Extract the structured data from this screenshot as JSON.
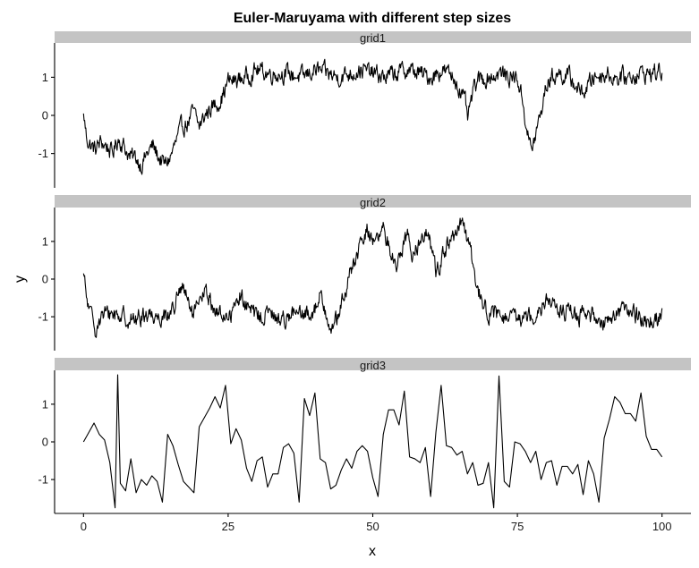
{
  "chart_data": {
    "type": "line",
    "title": "Euler-Maruyama with different step sizes",
    "xlabel": "x",
    "ylabel": "y",
    "xlim": [
      -5,
      105
    ],
    "ylim": [
      -1.9,
      1.9
    ],
    "x_ticks": [
      0,
      25,
      50,
      75,
      100
    ],
    "y_ticks": [
      -1,
      0,
      1
    ],
    "grid": false,
    "facets": [
      {
        "label": "grid1",
        "num_points": 1001,
        "anchors": [
          [
            0,
            0.05
          ],
          [
            0.5,
            -0.55
          ],
          [
            1,
            -0.75
          ],
          [
            2,
            -0.9
          ],
          [
            3,
            -0.7
          ],
          [
            4,
            -0.8
          ],
          [
            5,
            -1.0
          ],
          [
            6,
            -0.6
          ],
          [
            7,
            -0.8
          ],
          [
            8,
            -1.1
          ],
          [
            9,
            -1.1
          ],
          [
            10,
            -1.3
          ],
          [
            11,
            -1.0
          ],
          [
            12,
            -0.8
          ],
          [
            13,
            -1.1
          ],
          [
            14,
            -1.3
          ],
          [
            15,
            -1.1
          ],
          [
            16,
            -0.7
          ],
          [
            17,
            -0.3
          ],
          [
            18,
            -0.2
          ],
          [
            19,
            0.1
          ],
          [
            20,
            -0.3
          ],
          [
            21,
            0.0
          ],
          [
            22,
            0.2
          ],
          [
            23,
            0.3
          ],
          [
            24,
            0.5
          ],
          [
            25,
            0.9
          ],
          [
            26,
            0.9
          ],
          [
            28,
            1.0
          ],
          [
            30,
            1.2
          ],
          [
            32,
            1.1
          ],
          [
            35,
            1.1
          ],
          [
            38,
            1.0
          ],
          [
            40,
            1.2
          ],
          [
            42,
            1.1
          ],
          [
            44,
            1.0
          ],
          [
            46,
            1.1
          ],
          [
            48,
            1.2
          ],
          [
            50,
            1.1
          ],
          [
            52,
            1.0
          ],
          [
            54,
            1.1
          ],
          [
            56,
            1.2
          ],
          [
            58,
            1.1
          ],
          [
            60,
            1.0
          ],
          [
            62,
            1.2
          ],
          [
            63,
            1.1
          ],
          [
            64,
            1.0
          ],
          [
            65,
            0.7
          ],
          [
            66,
            0.3
          ],
          [
            66.5,
            -0.1
          ],
          [
            67,
            0.4
          ],
          [
            68,
            0.9
          ],
          [
            70,
            1.0
          ],
          [
            72,
            1.1
          ],
          [
            74,
            1.0
          ],
          [
            75,
            1.0
          ],
          [
            76,
            0.3
          ],
          [
            77,
            -0.7
          ],
          [
            77.5,
            -0.9
          ],
          [
            78,
            -0.6
          ],
          [
            79,
            0.0
          ],
          [
            80,
            0.8
          ],
          [
            81,
            1.0
          ],
          [
            82,
            1.1
          ],
          [
            84,
            1.0
          ],
          [
            86,
            0.6
          ],
          [
            87,
            0.7
          ],
          [
            88,
            1.0
          ],
          [
            90,
            1.1
          ],
          [
            92,
            1.0
          ],
          [
            94,
            1.0
          ],
          [
            96,
            1.1
          ],
          [
            98,
            1.1
          ],
          [
            100,
            1.15
          ]
        ]
      },
      {
        "label": "grid2",
        "num_points": 1001,
        "anchors": [
          [
            0,
            0.15
          ],
          [
            0.5,
            -0.5
          ],
          [
            1,
            -0.85
          ],
          [
            2,
            -1.3
          ],
          [
            3,
            -1.0
          ],
          [
            5,
            -0.9
          ],
          [
            7,
            -1.0
          ],
          [
            9,
            -1.1
          ],
          [
            11,
            -0.9
          ],
          [
            13,
            -1.0
          ],
          [
            15,
            -0.9
          ],
          [
            16,
            -0.6
          ],
          [
            17,
            -0.2
          ],
          [
            18,
            -0.6
          ],
          [
            19,
            -1.0
          ],
          [
            20,
            -0.7
          ],
          [
            21,
            -0.3
          ],
          [
            22,
            -0.6
          ],
          [
            23,
            -0.9
          ],
          [
            25,
            -1.0
          ],
          [
            26,
            -0.8
          ],
          [
            27,
            -0.4
          ],
          [
            28,
            -0.7
          ],
          [
            30,
            -1.0
          ],
          [
            32,
            -0.9
          ],
          [
            34,
            -1.1
          ],
          [
            36,
            -0.9
          ],
          [
            38,
            -1.0
          ],
          [
            40,
            -0.8
          ],
          [
            41,
            -0.4
          ],
          [
            42,
            -0.9
          ],
          [
            43,
            -1.3
          ],
          [
            44,
            -1.0
          ],
          [
            45,
            -0.5
          ],
          [
            46,
            0.1
          ],
          [
            47,
            0.5
          ],
          [
            48,
            0.9
          ],
          [
            49,
            1.3
          ],
          [
            50,
            1.1
          ],
          [
            51,
            1.0
          ],
          [
            52,
            1.3
          ],
          [
            53,
            0.8
          ],
          [
            54,
            0.3
          ],
          [
            55,
            0.8
          ],
          [
            56,
            1.2
          ],
          [
            57,
            0.6
          ],
          [
            58,
            1.0
          ],
          [
            59,
            1.3
          ],
          [
            60,
            0.9
          ],
          [
            61,
            0.2
          ],
          [
            62,
            0.6
          ],
          [
            63,
            0.9
          ],
          [
            64,
            1.1
          ],
          [
            65,
            1.4
          ],
          [
            66,
            1.3
          ],
          [
            67,
            0.6
          ],
          [
            68,
            -0.2
          ],
          [
            69,
            -0.6
          ],
          [
            70,
            -0.9
          ],
          [
            72,
            -1.0
          ],
          [
            74,
            -1.1
          ],
          [
            76,
            -1.0
          ],
          [
            78,
            -0.9
          ],
          [
            80,
            -0.5
          ],
          [
            82,
            -0.8
          ],
          [
            84,
            -0.9
          ],
          [
            86,
            -1.0
          ],
          [
            88,
            -1.0
          ],
          [
            90,
            -1.1
          ],
          [
            92,
            -0.9
          ],
          [
            94,
            -0.8
          ],
          [
            96,
            -1.0
          ],
          [
            98,
            -1.1
          ],
          [
            100,
            -1.0
          ]
        ]
      },
      {
        "label": "grid3",
        "points": [
          [
            0,
            0.0
          ],
          [
            1,
            0.25
          ],
          [
            2,
            0.5
          ],
          [
            3,
            0.2
          ],
          [
            4,
            0.05
          ],
          [
            5,
            -0.55
          ],
          [
            6,
            -1.75
          ],
          [
            6.5,
            1.78
          ],
          [
            7,
            -1.1
          ],
          [
            8,
            -1.3
          ],
          [
            9,
            -0.45
          ],
          [
            10,
            -1.35
          ],
          [
            11,
            -1.0
          ],
          [
            12,
            -1.15
          ],
          [
            13,
            -0.9
          ],
          [
            14,
            -1.05
          ],
          [
            15,
            -1.6
          ],
          [
            16,
            0.2
          ],
          [
            17,
            -0.1
          ],
          [
            18,
            -0.6
          ],
          [
            19,
            -1.05
          ],
          [
            20,
            -1.2
          ],
          [
            21,
            -1.35
          ],
          [
            22,
            0.4
          ],
          [
            23,
            0.65
          ],
          [
            24,
            0.9
          ],
          [
            25,
            1.2
          ],
          [
            26,
            0.9
          ],
          [
            27,
            1.5
          ],
          [
            28,
            -0.05
          ],
          [
            29,
            0.35
          ],
          [
            30,
            0.05
          ],
          [
            31,
            -0.7
          ],
          [
            32,
            -1.05
          ],
          [
            33,
            -0.5
          ],
          [
            34,
            -0.4
          ],
          [
            35,
            -1.2
          ],
          [
            36,
            -0.85
          ],
          [
            37,
            -0.85
          ],
          [
            38,
            -0.15
          ],
          [
            39,
            -0.05
          ],
          [
            40,
            -0.3
          ],
          [
            41,
            -1.6
          ],
          [
            42,
            1.15
          ],
          [
            43,
            0.7
          ],
          [
            44,
            1.3
          ],
          [
            45,
            -0.45
          ],
          [
            46,
            -0.55
          ],
          [
            47,
            -1.25
          ],
          [
            48,
            -1.15
          ],
          [
            49,
            -0.75
          ],
          [
            50,
            -0.45
          ],
          [
            51,
            -0.7
          ],
          [
            52,
            -0.25
          ],
          [
            53,
            -0.1
          ],
          [
            54,
            -0.25
          ],
          [
            55,
            -0.95
          ],
          [
            56,
            -1.45
          ],
          [
            57,
            0.2
          ],
          [
            58,
            0.85
          ],
          [
            59,
            0.85
          ],
          [
            60,
            0.45
          ],
          [
            61,
            1.35
          ],
          [
            62,
            -0.4
          ],
          [
            63,
            -0.45
          ],
          [
            64,
            -0.55
          ],
          [
            65,
            -0.15
          ],
          [
            66,
            -1.45
          ],
          [
            67,
            0.25
          ],
          [
            68,
            1.5
          ],
          [
            69,
            -0.1
          ],
          [
            70,
            -0.15
          ],
          [
            71,
            -0.35
          ],
          [
            72,
            -0.25
          ],
          [
            73,
            -0.85
          ],
          [
            74,
            -0.55
          ],
          [
            75,
            -1.15
          ],
          [
            76,
            -1.1
          ],
          [
            77,
            -0.55
          ],
          [
            78,
            -1.75
          ],
          [
            79,
            1.75
          ],
          [
            80,
            -1.05
          ],
          [
            81,
            -1.2
          ],
          [
            82,
            0.0
          ],
          [
            83,
            -0.05
          ],
          [
            84,
            -0.25
          ],
          [
            85,
            -0.55
          ],
          [
            86,
            -0.25
          ],
          [
            87,
            -1.0
          ],
          [
            88,
            -0.55
          ],
          [
            89,
            -0.5
          ],
          [
            90,
            -1.15
          ],
          [
            91,
            -0.65
          ],
          [
            92,
            -0.65
          ],
          [
            93,
            -0.85
          ],
          [
            94,
            -0.6
          ],
          [
            95,
            -1.4
          ],
          [
            96,
            -0.5
          ],
          [
            97,
            -0.85
          ],
          [
            98,
            -1.6
          ],
          [
            99,
            0.1
          ],
          [
            100,
            0.6
          ],
          [
            101,
            1.2
          ],
          [
            102,
            1.05
          ],
          [
            103,
            0.75
          ],
          [
            104,
            0.75
          ],
          [
            105,
            0.55
          ],
          [
            106,
            1.3
          ],
          [
            107,
            0.15
          ],
          [
            108,
            -0.2
          ],
          [
            109,
            -0.2
          ],
          [
            110,
            -0.4
          ]
        ]
      }
    ]
  }
}
